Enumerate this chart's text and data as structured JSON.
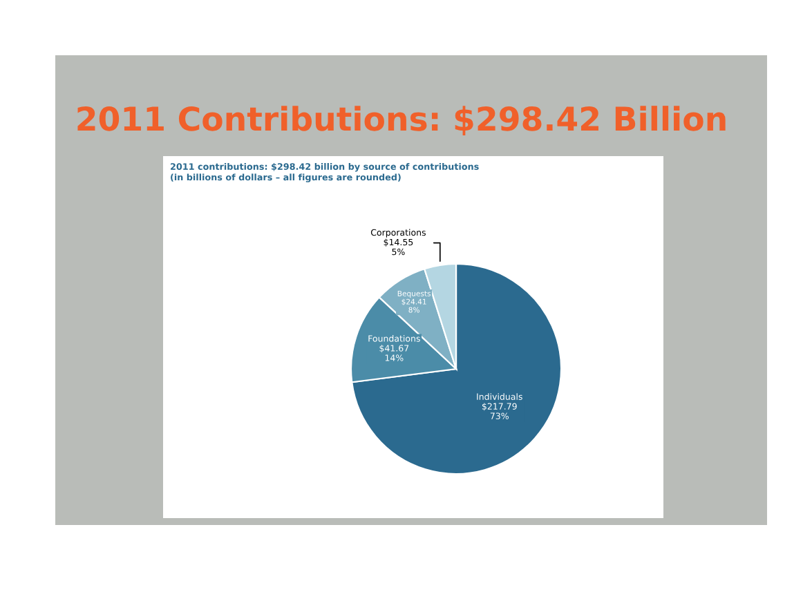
{
  "chart_data": {
    "type": "pie",
    "title": "2011 Contributions: $298.42 Billion",
    "subtitle": "2011 contributions: $298.42 billion by source of contributions\n(in billions of dollars – all figures are rounded)",
    "categories": [
      "Individuals",
      "Foundations",
      "Bequests",
      "Corporations"
    ],
    "values": [
      217.79,
      41.67,
      24.41,
      14.55
    ],
    "value_labels": [
      "$217.79\n73%",
      "$41.67\n14%",
      "$24.41\n8%",
      "$14.55\n5%"
    ],
    "colors": [
      "#2b6a8f",
      "#4b8ca8",
      "#7fb0c4",
      "#b4d6e2"
    ]
  }
}
